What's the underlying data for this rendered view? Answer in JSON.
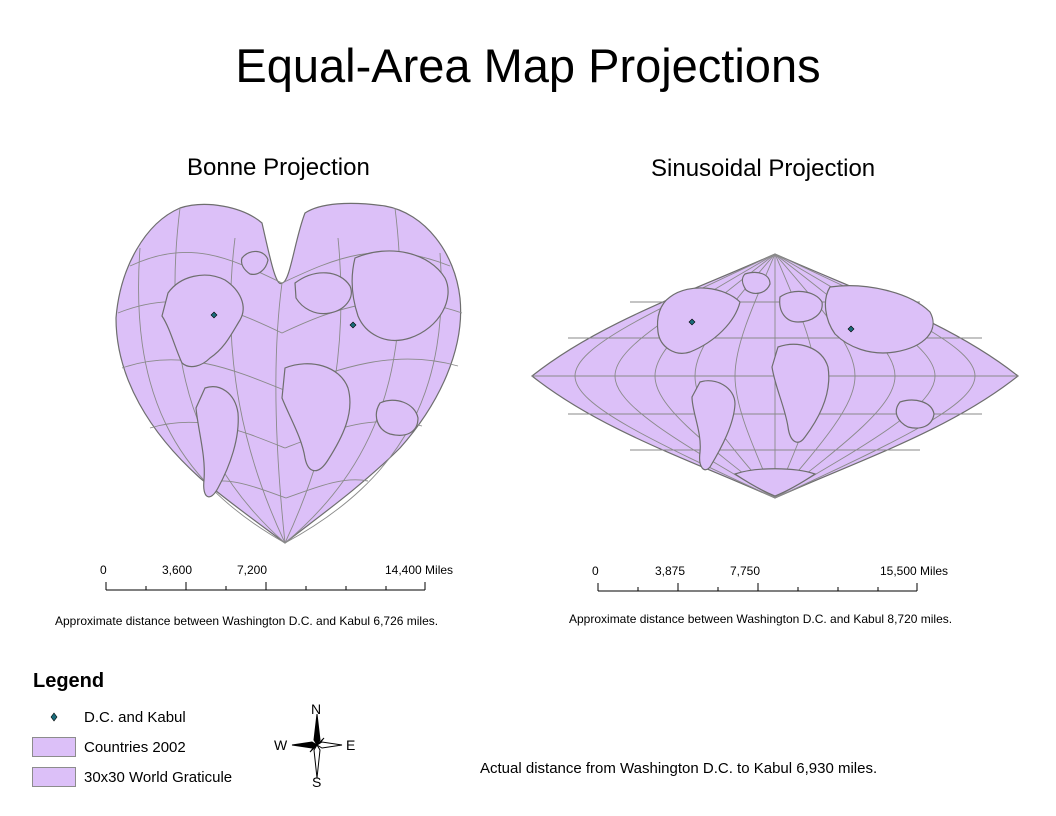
{
  "title": "Equal-Area Map Projections",
  "colors": {
    "land": "#dcc0f8",
    "outline": "#6e6e6e",
    "point": "#1b6c7a"
  },
  "maps": [
    {
      "title": "Bonne Projection",
      "scale": {
        "labels": [
          "0",
          "3,600",
          "7,200",
          "14,400"
        ],
        "values": [
          0,
          3600,
          7200,
          14400
        ],
        "unit": "Miles"
      },
      "note": "Approximate distance between Washington D.C. and Kabul 6,726 miles."
    },
    {
      "title": "Sinusoidal Projection",
      "scale": {
        "labels": [
          "0",
          "3,875",
          "7,750",
          "15,500"
        ],
        "values": [
          0,
          3875,
          7750,
          15500
        ],
        "unit": "Miles"
      },
      "note": "Approximate distance between Washington D.C. and Kabul 8,720 miles."
    }
  ],
  "legend": {
    "title": "Legend",
    "items": [
      {
        "label": "D.C. and Kabul",
        "symbol": "point"
      },
      {
        "label": "Countries 2002",
        "symbol": "fill"
      },
      {
        "label": "30x30 World Graticule",
        "symbol": "fill"
      }
    ]
  },
  "north_arrow": {
    "n": "N",
    "s": "S",
    "e": "E",
    "w": "W"
  },
  "actual_distance": "Actual distance from Washington D.C. to Kabul 6,930 miles."
}
